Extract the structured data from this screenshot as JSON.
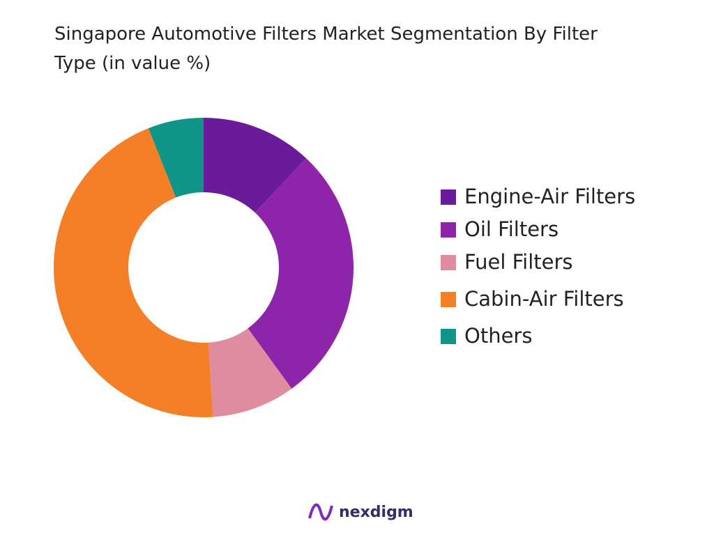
{
  "chart_data": {
    "type": "donut",
    "title": "Singapore Automotive Filters Market Segmentation By Filter Type (in value %)",
    "categories": [
      "Engine-Air Filters",
      "Oil Filters",
      "Fuel Filters",
      "Cabin-Air Filters",
      "Others"
    ],
    "values": [
      12,
      28,
      9,
      45,
      6
    ],
    "colors": [
      "#6a1b9a",
      "#8e24aa",
      "#e08ca0",
      "#f57f27",
      "#0f9488"
    ],
    "legend": "right"
  },
  "logo": "nexdigm"
}
